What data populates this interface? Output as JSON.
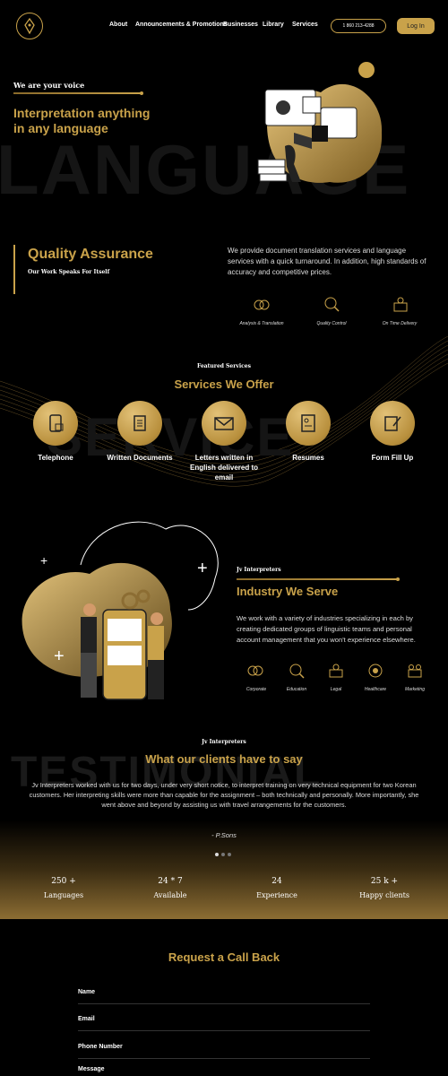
{
  "header": {
    "nav": [
      "About",
      "Announcements & Promotions",
      "Businesses",
      "Library",
      "Services"
    ],
    "phone": "1 860 213-4288",
    "login": "Log In"
  },
  "hero": {
    "eyebrow": "We are your voice",
    "title_line1": "Interpretation anything",
    "title_line2": "in any language",
    "bg_word": "LANGUAGE"
  },
  "quality": {
    "title": "Quality Assurance",
    "subtitle": "Our Work Speaks For Itself",
    "text": "We provide document translation services and language services with a quick turnaround. In addition, high standards of accuracy and competitive prices.",
    "features": [
      "Analysis & Translation",
      "Quality Control",
      "On Time Delivery"
    ]
  },
  "services": {
    "eyebrow": "Featured Services",
    "title": "Services We Offer",
    "bg_word": "SERVICE",
    "items": [
      "Telephone",
      "Written Documents",
      "Letters written in English delivered to email",
      "Resumes",
      "Form Fill Up"
    ]
  },
  "industry": {
    "eyebrow": "Jv Interpreters",
    "title": "Industry We Serve",
    "text": "We work with a variety of industries specializing in each by creating dedicated groups of linguistic teams and personal account management that you won't experience elsewhere.",
    "items": [
      "Corporate",
      "Education",
      "Legal",
      "Healthcare",
      "Marketing"
    ]
  },
  "testimonial": {
    "eyebrow": "Jv Interpreters",
    "title": "What our clients have to say",
    "bg_word": "TESTIMONIAL",
    "text": "Jv Interpreters worked with us for two days, under very short notice, to interpret training on very technical equipment for two Korean customers. Her interpreting skills were more than capable for the assignment – both technically and personally. More importantly, she went above and beyond by assisting us with travel arrangements for the customers.",
    "author": "- P.Sons"
  },
  "stats": [
    {
      "value": "250 +",
      "label": "Languages"
    },
    {
      "value": "24 * 7",
      "label": "Available"
    },
    {
      "value": "24",
      "label": "Experience"
    },
    {
      "value": "25 k +",
      "label": "Happy clients"
    }
  ],
  "form": {
    "title": "Request a Call Back",
    "fields": [
      "Name",
      "Email",
      "Phone Number",
      "Message"
    ]
  },
  "colors": {
    "accent": "#c9a24a",
    "background": "#000000"
  }
}
